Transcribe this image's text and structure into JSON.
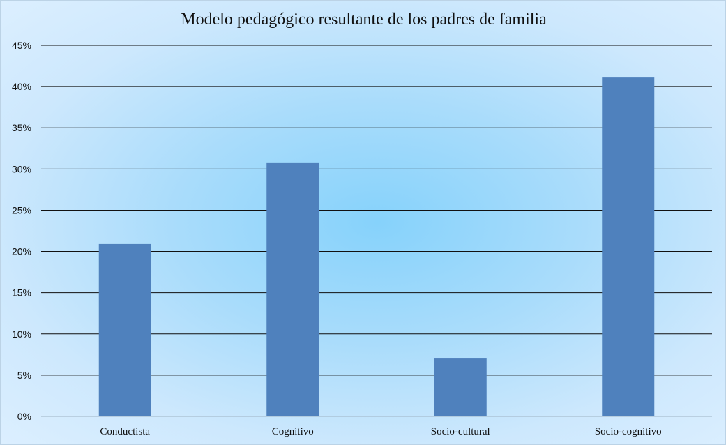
{
  "chart_data": {
    "type": "bar",
    "title": "Modelo pedagógico resultante de los padres de familia",
    "categories": [
      "Conductista",
      "Cognitivo",
      "Socio-cultural",
      "Socio-cognitivo"
    ],
    "values": [
      0.209,
      0.308,
      0.071,
      0.411
    ],
    "ylim": [
      0,
      0.45
    ],
    "yticks": [
      0,
      0.05,
      0.1,
      0.15,
      0.2,
      0.25,
      0.3,
      0.35,
      0.4,
      0.45
    ],
    "ytick_labels": [
      "0%",
      "5%",
      "10%",
      "15%",
      "20%",
      "25%",
      "30%",
      "35%",
      "40%",
      "45%"
    ],
    "xlabel": "",
    "ylabel": "",
    "grid": true,
    "legend": "none",
    "bar_color": "#4f81bd",
    "grid_color": "#111111"
  }
}
